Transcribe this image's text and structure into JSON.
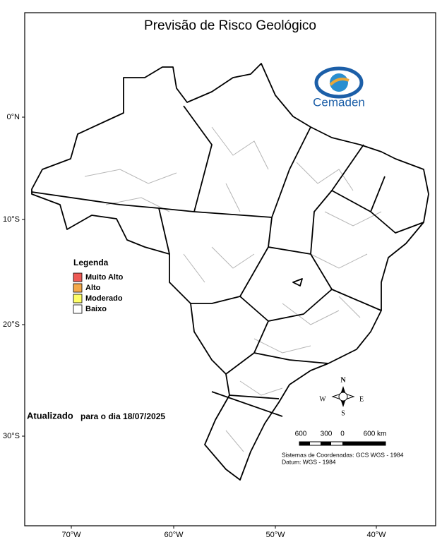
{
  "title": "Previsão de Risco Geológico",
  "logo": {
    "text": "Cemaden"
  },
  "legend": {
    "title": "Legenda",
    "items": [
      {
        "label": "Muito Alto",
        "color": "#ee5a55"
      },
      {
        "label": "Alto",
        "color": "#f4a94a"
      },
      {
        "label": "Moderado",
        "color": "#ffff66"
      },
      {
        "label": "Baixo",
        "color": "#ffffff"
      }
    ]
  },
  "lat_labels": [
    "0°N",
    "10°S",
    "20°S",
    "30°S"
  ],
  "lon_labels": [
    "70°W",
    "60°W",
    "50°W",
    "40°W"
  ],
  "update": {
    "prefix": "Atualizado",
    "text": "para o dia 18/07/2025"
  },
  "compass": {
    "north": "N",
    "south": "S",
    "east": "E",
    "west": "W"
  },
  "scale": {
    "labels": [
      "600",
      "300",
      "0",
      "600 km"
    ]
  },
  "footer": [
    "Sistemas de Coordenadas: GCS WGS - 1984",
    "Datum: WGS - 1984"
  ]
}
